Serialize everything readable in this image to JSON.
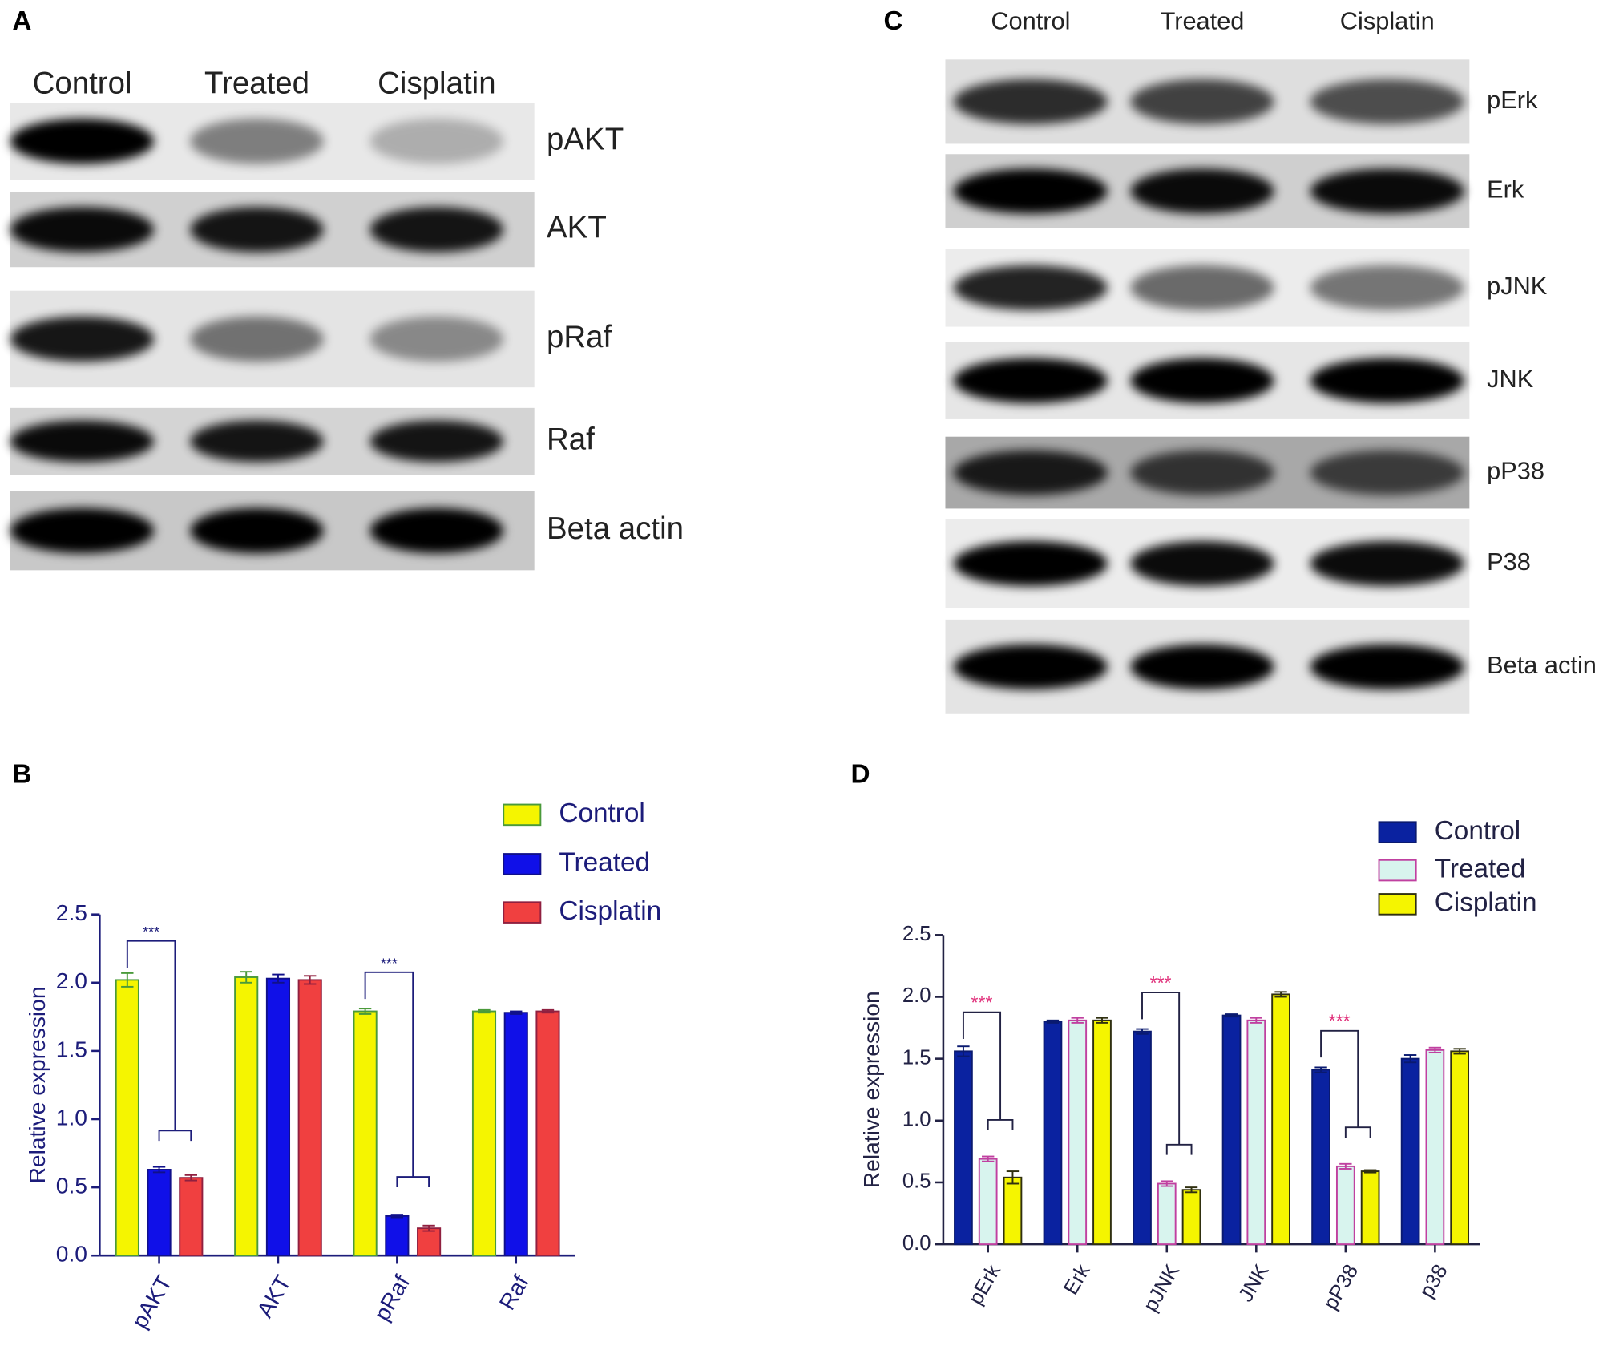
{
  "blot_a": {
    "label": "A",
    "lanes": [
      "Control",
      "Treated",
      "Cisplatin"
    ],
    "rows": [
      "pAKT",
      "AKT",
      "pRaf",
      "Raf",
      "Beta actin"
    ]
  },
  "blot_c": {
    "label": "C",
    "lanes": [
      "Control",
      "Treated",
      "Cisplatin"
    ],
    "rows": [
      "pErk",
      "Erk",
      "pJNK",
      "JNK",
      "pP38",
      "P38",
      "Beta actin"
    ]
  },
  "chart_data": [
    {
      "type": "bar",
      "label": "B",
      "ylabel": "Relative expression",
      "categories": [
        "pAKT",
        "AKT",
        "pRaf",
        "Raf"
      ],
      "series": [
        {
          "name": "Control",
          "color": "#f5f500",
          "edgecolor": "#4a9a3a",
          "values": [
            2.02,
            2.04,
            1.79,
            1.79
          ],
          "errors": [
            0.05,
            0.04,
            0.02,
            0.01
          ]
        },
        {
          "name": "Treated",
          "color": "#1010e8",
          "edgecolor": "#10108a",
          "values": [
            0.63,
            2.03,
            0.29,
            1.78
          ],
          "errors": [
            0.02,
            0.03,
            0.01,
            0.01
          ]
        },
        {
          "name": "Cisplatin",
          "color": "#f04040",
          "edgecolor": "#902040",
          "values": [
            0.57,
            2.02,
            0.2,
            1.79
          ],
          "errors": [
            0.02,
            0.03,
            0.02,
            0.01
          ]
        }
      ],
      "annotations": [
        {
          "text": "***",
          "category": 0
        },
        {
          "text": "***",
          "category": 2
        }
      ],
      "ylim": [
        0,
        2.5
      ],
      "yticks": [
        {
          "value": 0,
          "label": "0.0"
        },
        0.5,
        {
          "value": 1,
          "label": "1.0"
        },
        1.5,
        {
          "value": 2,
          "label": "2.0"
        },
        2.5
      ]
    },
    {
      "type": "bar",
      "label": "D",
      "ylabel": "Relative expression",
      "categories": [
        "pErk",
        "Erk",
        "pJNK",
        "JNK",
        "pP38",
        "p38"
      ],
      "series": [
        {
          "name": "Control",
          "color": "#0a22a0",
          "edgecolor": "#0a1a70",
          "values": [
            1.56,
            1.8,
            1.72,
            1.85,
            1.41,
            1.5
          ],
          "errors": [
            0.04,
            0.01,
            0.02,
            0.01,
            0.02,
            0.03
          ]
        },
        {
          "name": "Treated",
          "color": "#d8f4ee",
          "edgecolor": "#c040a0",
          "values": [
            0.69,
            1.81,
            0.49,
            1.81,
            0.63,
            1.57
          ],
          "errors": [
            0.02,
            0.02,
            0.02,
            0.02,
            0.02,
            0.02
          ]
        },
        {
          "name": "Cisplatin",
          "color": "#f5f500",
          "edgecolor": "#303010",
          "values": [
            0.54,
            1.81,
            0.44,
            2.02,
            0.59,
            1.56
          ],
          "errors": [
            0.05,
            0.02,
            0.02,
            0.02,
            0.01,
            0.02
          ]
        }
      ],
      "annotations": [
        {
          "text": "***",
          "category": 0
        },
        {
          "text": "***",
          "category": 2
        },
        {
          "text": "***",
          "category": 4
        }
      ],
      "ylim": [
        0,
        2.5
      ],
      "yticks": [
        {
          "value": 0,
          "label": "0.0"
        },
        0.5,
        {
          "value": 1,
          "label": "1.0"
        },
        1.5,
        {
          "value": 2,
          "label": "2.0"
        },
        2.5
      ]
    }
  ]
}
